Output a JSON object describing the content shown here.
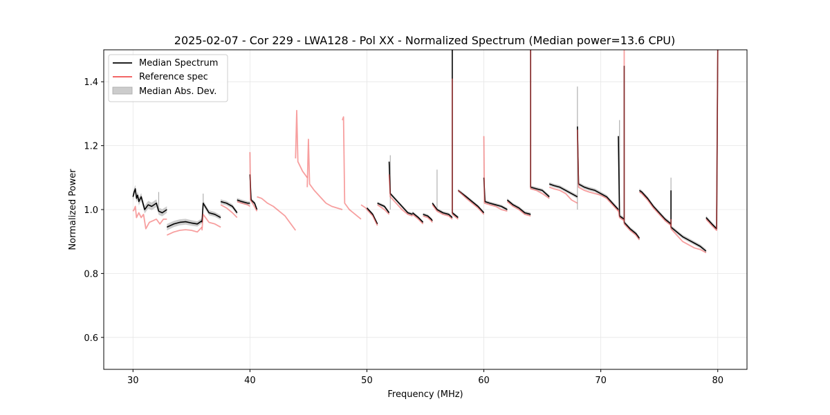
{
  "chart_data": {
    "type": "line",
    "title": "2025-02-07 - Cor 229 - LWA128 - Pol XX - Normalized Spectrum (Median power=13.6 CPU)",
    "xlabel": "Frequency (MHz)",
    "ylabel": "Normalized Power",
    "xlim": [
      27.5,
      82.5
    ],
    "ylim": [
      0.5,
      1.5
    ],
    "x_ticks": [
      30,
      40,
      50,
      60,
      70,
      80
    ],
    "y_ticks": [
      0.6,
      0.8,
      1.0,
      1.2,
      1.4
    ],
    "x_tick_labels": [
      "30",
      "40",
      "50",
      "60",
      "70",
      "80"
    ],
    "y_tick_labels": [
      "0.6",
      "0.8",
      "1.0",
      "1.2",
      "1.4"
    ],
    "grid": true,
    "legend_position": "top-left",
    "legend": [
      "Median Spectrum",
      "Reference spec",
      "Median Abs. Dev."
    ],
    "colors": {
      "median": "#000000",
      "reference": "#f05050",
      "overlap": "#800000",
      "mad_fill": "#bfbfbf"
    },
    "series": [
      {
        "name": "Median Spectrum",
        "segments": [
          {
            "x": [
              30.0,
              30.1,
              30.2,
              30.3,
              30.4,
              30.5,
              30.7,
              31.0,
              31.3,
              31.6,
              32.0,
              32.2,
              32.5,
              32.9
            ],
            "y": [
              1.04,
              1.055,
              1.065,
              1.035,
              1.045,
              1.025,
              1.04,
              1.0,
              1.015,
              1.01,
              1.02,
              0.995,
              0.99,
              1.0
            ]
          },
          {
            "x": [
              32.9,
              33.5,
              34.0,
              34.5,
              35.0,
              35.5,
              35.9
            ],
            "y": [
              0.945,
              0.955,
              0.96,
              0.962,
              0.958,
              0.955,
              0.965
            ]
          },
          {
            "x": [
              35.9,
              36.0,
              36.5,
              37.0,
              37.5
            ],
            "y": [
              0.96,
              1.02,
              0.99,
              0.985,
              0.975
            ]
          },
          {
            "x": [
              37.5,
              38.0,
              38.5,
              38.9
            ],
            "y": [
              1.025,
              1.02,
              1.01,
              0.99
            ]
          },
          {
            "x": [
              38.9,
              39.3,
              39.8,
              40.0
            ],
            "y": [
              1.03,
              1.025,
              1.02,
              1.02
            ]
          },
          {
            "x": [
              40.0,
              40.1,
              40.4,
              40.6
            ],
            "y": [
              1.11,
              1.03,
              1.02,
              1.0
            ]
          },
          {
            "x": [
              50.0,
              50.5,
              50.9
            ],
            "y": [
              1.005,
              0.985,
              0.955
            ]
          },
          {
            "x": [
              50.9,
              51.5,
              51.9
            ],
            "y": [
              1.02,
              1.01,
              0.99
            ]
          },
          {
            "x": [
              51.9,
              52.0,
              52.5,
              53.0,
              53.5,
              53.9
            ],
            "y": [
              1.15,
              1.05,
              1.03,
              1.01,
              0.99,
              0.985
            ]
          },
          {
            "x": [
              53.9,
              54.4,
              54.8
            ],
            "y": [
              0.99,
              0.975,
              0.96
            ]
          },
          {
            "x": [
              54.8,
              55.2,
              55.5,
              55.6
            ],
            "y": [
              0.985,
              0.98,
              0.97,
              0.965
            ]
          },
          {
            "x": [
              55.6,
              56.0,
              56.5,
              57.0,
              57.3
            ],
            "y": [
              1.02,
              1.0,
              0.99,
              0.985,
              0.975
            ]
          },
          {
            "x": [
              57.3,
              57.3,
              57.8
            ],
            "y": [
              1.5,
              0.99,
              0.975
            ]
          },
          {
            "x": [
              57.8,
              58.5,
              59.0,
              59.5,
              60.0
            ],
            "y": [
              1.06,
              1.04,
              1.025,
              1.01,
              0.99
            ]
          },
          {
            "x": [
              60.0,
              60.1,
              60.5,
              61.0,
              61.5,
              62.0
            ],
            "y": [
              1.1,
              1.025,
              1.02,
              1.015,
              1.01,
              1.0
            ]
          },
          {
            "x": [
              62.0,
              62.5,
              63.0,
              63.5,
              64.0
            ],
            "y": [
              1.03,
              1.015,
              1.005,
              0.99,
              0.985
            ]
          },
          {
            "x": [
              64.0,
              64.0,
              64.5,
              65.0,
              65.6
            ],
            "y": [
              1.5,
              1.07,
              1.065,
              1.06,
              1.04
            ]
          },
          {
            "x": [
              65.6,
              66.0,
              66.5,
              67.0,
              67.5,
              68.0
            ],
            "y": [
              1.08,
              1.075,
              1.07,
              1.06,
              1.05,
              1.04
            ]
          },
          {
            "x": [
              68.0,
              68.1,
              68.6,
              69.0,
              69.5,
              70.0,
              70.5,
              71.0,
              71.5
            ],
            "y": [
              1.26,
              1.08,
              1.07,
              1.065,
              1.06,
              1.05,
              1.04,
              1.02,
              1.0
            ]
          },
          {
            "x": [
              71.5,
              71.6,
              71.8,
              72.0
            ],
            "y": [
              1.23,
              0.98,
              0.975,
              0.97
            ]
          },
          {
            "x": [
              72.0,
              72.0,
              72.5,
              73.0,
              73.3
            ],
            "y": [
              1.45,
              0.96,
              0.94,
              0.925,
              0.91
            ]
          },
          {
            "x": [
              73.3,
              73.5,
              74.0,
              74.5,
              75.0,
              75.5,
              76.0
            ],
            "y": [
              1.06,
              1.055,
              1.035,
              1.01,
              0.99,
              0.97,
              0.955
            ]
          },
          {
            "x": [
              76.0,
              76.0,
              76.5,
              77.0,
              77.5,
              78.0,
              78.5,
              79.0
            ],
            "y": [
              1.06,
              0.945,
              0.93,
              0.915,
              0.905,
              0.895,
              0.885,
              0.87
            ]
          },
          {
            "x": [
              79.0,
              79.5,
              79.9,
              80.0
            ],
            "y": [
              0.975,
              0.955,
              0.94,
              1.5
            ]
          }
        ]
      },
      {
        "name": "Reference spec",
        "segments": [
          {
            "x": [
              30.0,
              30.1,
              30.2,
              30.3,
              30.5,
              30.7,
              30.9,
              31.1,
              31.4,
              31.7,
              32.0,
              32.3,
              32.6,
              32.9
            ],
            "y": [
              0.995,
              1.0,
              1.01,
              0.975,
              0.99,
              0.975,
              0.985,
              0.94,
              0.96,
              0.965,
              0.97,
              0.955,
              0.97,
              0.97
            ]
          },
          {
            "x": [
              32.9,
              33.5,
              34.0,
              34.5,
              35.0,
              35.5,
              35.9
            ],
            "y": [
              0.92,
              0.93,
              0.935,
              0.937,
              0.935,
              0.93,
              0.945
            ]
          },
          {
            "x": [
              35.9,
              36.0,
              36.5,
              37.0,
              37.5
            ],
            "y": [
              0.935,
              0.985,
              0.96,
              0.955,
              0.945
            ]
          },
          {
            "x": [
              37.5,
              38.0,
              38.5,
              38.9
            ],
            "y": [
              1.015,
              1.005,
              0.99,
              0.975
            ]
          },
          {
            "x": [
              38.9,
              39.3,
              39.8,
              40.0
            ],
            "y": [
              1.025,
              1.02,
              1.015,
              1.01
            ]
          },
          {
            "x": [
              40.0,
              40.05,
              40.3,
              40.6
            ],
            "y": [
              1.18,
              1.03,
              1.015,
              0.995
            ]
          },
          {
            "x": [
              40.6,
              41.0,
              41.5,
              42.0,
              42.5,
              43.0,
              43.5,
              43.9
            ],
            "y": [
              1.04,
              1.035,
              1.02,
              1.01,
              0.995,
              0.98,
              0.955,
              0.935
            ]
          },
          {
            "x": [
              43.9,
              44.0,
              44.1,
              44.5,
              44.9
            ],
            "y": [
              1.16,
              1.31,
              1.15,
              1.12,
              1.1
            ]
          },
          {
            "x": [
              44.9,
              45.0,
              45.1,
              45.5,
              46.0,
              46.5
            ],
            "y": [
              1.07,
              1.22,
              1.08,
              1.06,
              1.04,
              1.02
            ]
          },
          {
            "x": [
              46.5,
              47.0,
              47.9
            ],
            "y": [
              1.02,
              1.01,
              1.0
            ]
          },
          {
            "x": [
              47.9,
              48.0,
              48.1,
              48.5,
              49.0,
              49.5
            ],
            "y": [
              1.28,
              1.29,
              1.02,
              1.0,
              0.985,
              0.97
            ]
          },
          {
            "x": [
              49.5,
              49.9,
              50.0
            ],
            "y": [
              1.015,
              1.005,
              1.0
            ]
          },
          {
            "x": [
              50.0,
              50.5,
              50.9
            ],
            "y": [
              1.0,
              0.98,
              0.95
            ]
          },
          {
            "x": [
              50.9,
              51.5,
              51.9
            ],
            "y": [
              1.015,
              1.0,
              0.985
            ]
          },
          {
            "x": [
              51.9,
              52.0,
              52.5,
              53.0,
              53.5,
              53.9
            ],
            "y": [
              1.11,
              1.04,
              1.02,
              1.0,
              0.985,
              0.98
            ]
          },
          {
            "x": [
              53.9,
              54.4,
              54.8
            ],
            "y": [
              0.985,
              0.97,
              0.955
            ]
          },
          {
            "x": [
              54.8,
              55.2,
              55.5,
              55.6
            ],
            "y": [
              0.98,
              0.975,
              0.965,
              0.96
            ]
          },
          {
            "x": [
              55.6,
              56.0,
              56.5,
              57.0,
              57.3
            ],
            "y": [
              1.015,
              0.995,
              0.985,
              0.98,
              0.97
            ]
          },
          {
            "x": [
              57.3,
              57.3,
              57.8
            ],
            "y": [
              1.41,
              0.985,
              0.97
            ]
          },
          {
            "x": [
              57.8,
              58.5,
              59.0,
              59.5,
              60.0
            ],
            "y": [
              1.06,
              1.035,
              1.02,
              1.005,
              0.985
            ]
          },
          {
            "x": [
              60.0,
              60.05,
              60.5,
              61.0,
              61.5,
              62.0
            ],
            "y": [
              1.23,
              1.02,
              1.015,
              1.01,
              1.0,
              0.995
            ]
          },
          {
            "x": [
              62.0,
              62.5,
              63.0,
              63.5,
              64.0
            ],
            "y": [
              1.025,
              1.01,
              1.0,
              0.985,
              0.98
            ]
          },
          {
            "x": [
              64.0,
              64.0,
              64.5,
              65.0,
              65.6
            ],
            "y": [
              1.5,
              1.065,
              1.06,
              1.05,
              1.035
            ]
          },
          {
            "x": [
              65.6,
              66.0,
              66.5,
              67.0,
              67.5,
              68.0
            ],
            "y": [
              1.07,
              1.065,
              1.06,
              1.05,
              1.03,
              1.02
            ]
          },
          {
            "x": [
              68.0,
              68.1,
              68.6,
              69.0,
              69.5,
              70.0,
              70.5,
              71.0,
              71.5
            ],
            "y": [
              1.25,
              1.07,
              1.06,
              1.055,
              1.05,
              1.045,
              1.035,
              1.015,
              0.995
            ]
          },
          {
            "x": [
              71.5,
              71.6,
              71.8,
              72.0
            ],
            "y": [
              1.0,
              0.975,
              0.97,
              0.965
            ]
          },
          {
            "x": [
              72.0,
              72.0,
              72.5,
              73.0,
              73.3
            ],
            "y": [
              1.5,
              0.955,
              0.935,
              0.92,
              0.905
            ]
          },
          {
            "x": [
              73.3,
              73.5,
              74.0,
              74.5,
              75.0,
              75.5,
              76.0
            ],
            "y": [
              1.055,
              1.05,
              1.03,
              1.005,
              0.985,
              0.965,
              0.95
            ]
          },
          {
            "x": [
              76.0,
              76.0,
              76.5,
              77.0,
              77.5,
              78.0,
              78.5,
              79.0
            ],
            "y": [
              0.97,
              0.94,
              0.92,
              0.9,
              0.89,
              0.88,
              0.875,
              0.865
            ]
          },
          {
            "x": [
              79.0,
              79.5,
              79.9,
              80.0
            ],
            "y": [
              0.97,
              0.95,
              0.935,
              1.5
            ]
          }
        ]
      }
    ],
    "mad_band": {
      "x": [
        30.0,
        32.0,
        33.0,
        36.0,
        40.0,
        50.0,
        60.0,
        70.0,
        80.0
      ],
      "halfwidth": [
        0.012,
        0.012,
        0.01,
        0.008,
        0.006,
        0.005,
        0.005,
        0.006,
        0.006
      ]
    },
    "mad_spikes": [
      {
        "x": 32.2,
        "y": 1.055
      },
      {
        "x": 36.0,
        "y": 1.05
      },
      {
        "x": 52.0,
        "y": 1.17
      },
      {
        "x": 56.0,
        "y": 1.125
      },
      {
        "x": 68.0,
        "y": 1.385
      },
      {
        "x": 71.6,
        "y": 1.28
      },
      {
        "x": 76.0,
        "y": 1.1
      }
    ]
  }
}
